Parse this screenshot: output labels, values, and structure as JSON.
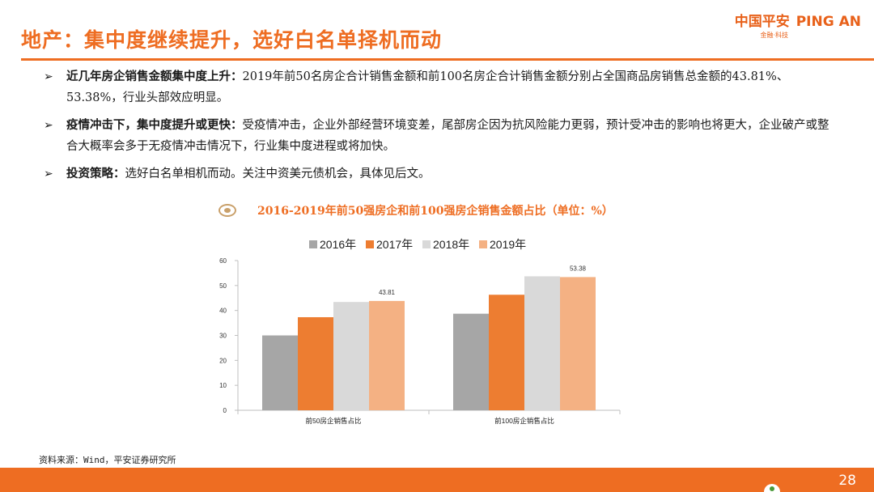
{
  "header": {
    "title": "地产：集中度继续提升，选好白名单择机而动",
    "logo_cn": "中国平安",
    "logo_en": "PING AN",
    "logo_tagline": "金融·科技"
  },
  "bullets": [
    {
      "label": "近几年房企销售金额集中度上升：",
      "text": "2019年前50名房企合计销售金额和前100名房企合计销售金额分别占全国商品房销售总金额的43.81%、53.38%，行业头部效应明显。"
    },
    {
      "label": "疫情冲击下，集中度提升或更快：",
      "text": "受疫情冲击，企业外部经营环境变差，尾部房企因为抗风险能力更弱，预计受冲击的影响也将更大，企业破产或整合大概率会多于无疫情冲击情况下，行业集中度进程或将加快。"
    },
    {
      "label": "投资策略：",
      "text": "选好白名单相机而动。关注中资美元债机会，具体见后文。"
    }
  ],
  "chart_data": {
    "type": "bar",
    "title": "2016-2019年前50强房企和前100强房企销售金额占比（单位：%）",
    "categories": [
      "前50房企销售占比",
      "前100房企销售占比"
    ],
    "series": [
      {
        "name": "2016年",
        "values": [
          30,
          38.7
        ],
        "color": "#a6a6a6"
      },
      {
        "name": "2017年",
        "values": [
          37.3,
          46.3
        ],
        "color": "#ed7d31"
      },
      {
        "name": "2018年",
        "values": [
          43.4,
          53.7
        ],
        "color": "#d9d9d9"
      },
      {
        "name": "2019年",
        "values": [
          43.81,
          53.38
        ],
        "color": "#f4b183"
      }
    ],
    "data_labels": [
      {
        "series": 3,
        "category": 0,
        "text": "43.81"
      },
      {
        "series": 3,
        "category": 1,
        "text": "53.38"
      }
    ],
    "yticks": [
      "0",
      "10",
      "20",
      "30",
      "40",
      "50",
      "60"
    ],
    "ylim": [
      0,
      60
    ],
    "legend_position": "top"
  },
  "source": "资料来源：Wind，平安证券研究所",
  "page_number": "28",
  "colors": {
    "accent": "#ee6d22"
  }
}
